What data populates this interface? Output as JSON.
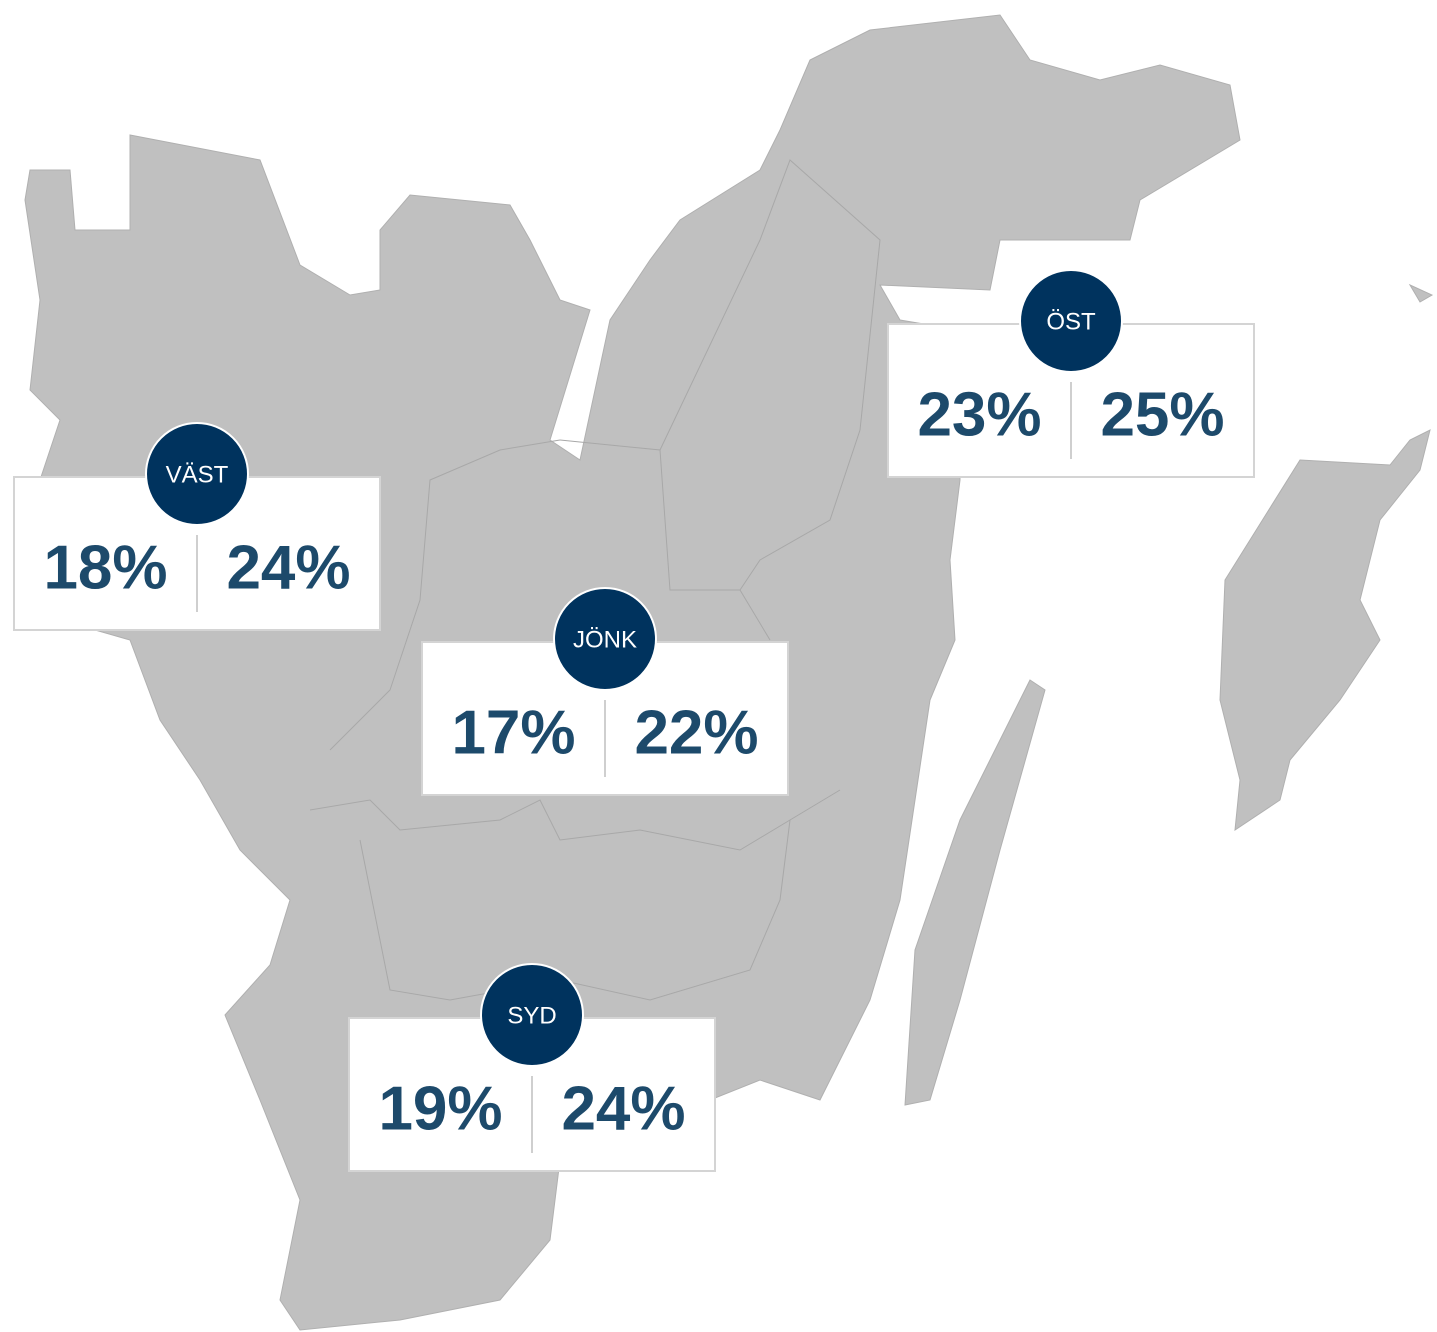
{
  "regions": [
    {
      "name": "VÄST",
      "values": [
        "18%",
        "24%"
      ]
    },
    {
      "name": "ÖST",
      "values": [
        "23%",
        "25%"
      ]
    },
    {
      "name": "JÖNK",
      "values": [
        "17%",
        "22%"
      ]
    },
    {
      "name": "SYD",
      "values": [
        "19%",
        "24%"
      ]
    }
  ]
}
